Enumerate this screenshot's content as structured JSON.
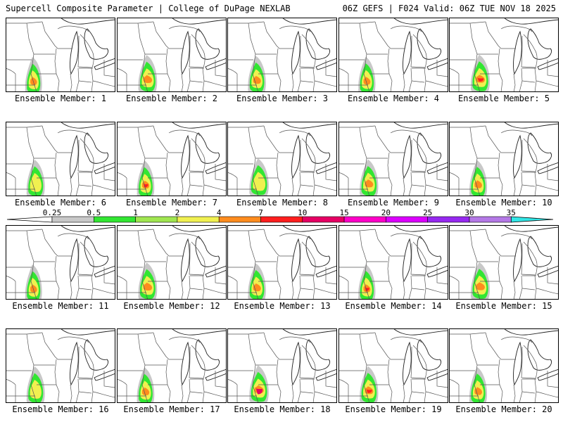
{
  "header": {
    "title_left": "Supercell Composite Parameter | College of DuPage NEXLAB",
    "title_right": "06Z GEFS | F024 Valid: 06Z TUE NOV 18 2025"
  },
  "members": [
    {
      "label": "Ensemble Member: 1",
      "intensity": 3
    },
    {
      "label": "Ensemble Member: 2",
      "intensity": 3
    },
    {
      "label": "Ensemble Member: 3",
      "intensity": 3
    },
    {
      "label": "Ensemble Member: 4",
      "intensity": 3
    },
    {
      "label": "Ensemble Member: 5",
      "intensity": 4
    },
    {
      "label": "Ensemble Member: 6",
      "intensity": 2
    },
    {
      "label": "Ensemble Member: 7",
      "intensity": 4
    },
    {
      "label": "Ensemble Member: 8",
      "intensity": 2
    },
    {
      "label": "Ensemble Member: 9",
      "intensity": 3
    },
    {
      "label": "Ensemble Member: 10",
      "intensity": 3
    },
    {
      "label": "Ensemble Member: 11",
      "intensity": 3
    },
    {
      "label": "Ensemble Member: 12",
      "intensity": 3
    },
    {
      "label": "Ensemble Member: 13",
      "intensity": 3
    },
    {
      "label": "Ensemble Member: 14",
      "intensity": 4
    },
    {
      "label": "Ensemble Member: 15",
      "intensity": 3
    },
    {
      "label": "Ensemble Member: 16",
      "intensity": 2
    },
    {
      "label": "Ensemble Member: 17",
      "intensity": 3
    },
    {
      "label": "Ensemble Member: 18",
      "intensity": 5
    },
    {
      "label": "Ensemble Member: 19",
      "intensity": 4
    },
    {
      "label": "Ensemble Member: 20",
      "intensity": 3
    }
  ],
  "legend": {
    "labels": [
      "0.25",
      "0.5",
      "1",
      "2",
      "4",
      "7",
      "10",
      "15",
      "20",
      "25",
      "30",
      "35"
    ],
    "colors": [
      "#c8c8c8",
      "#32e632",
      "#a0e650",
      "#f0f050",
      "#ff8c1e",
      "#ff1e1e",
      "#e60064",
      "#ff00c8",
      "#dc00ff",
      "#9628f0",
      "#b478e6",
      "#32e6e6"
    ]
  }
}
